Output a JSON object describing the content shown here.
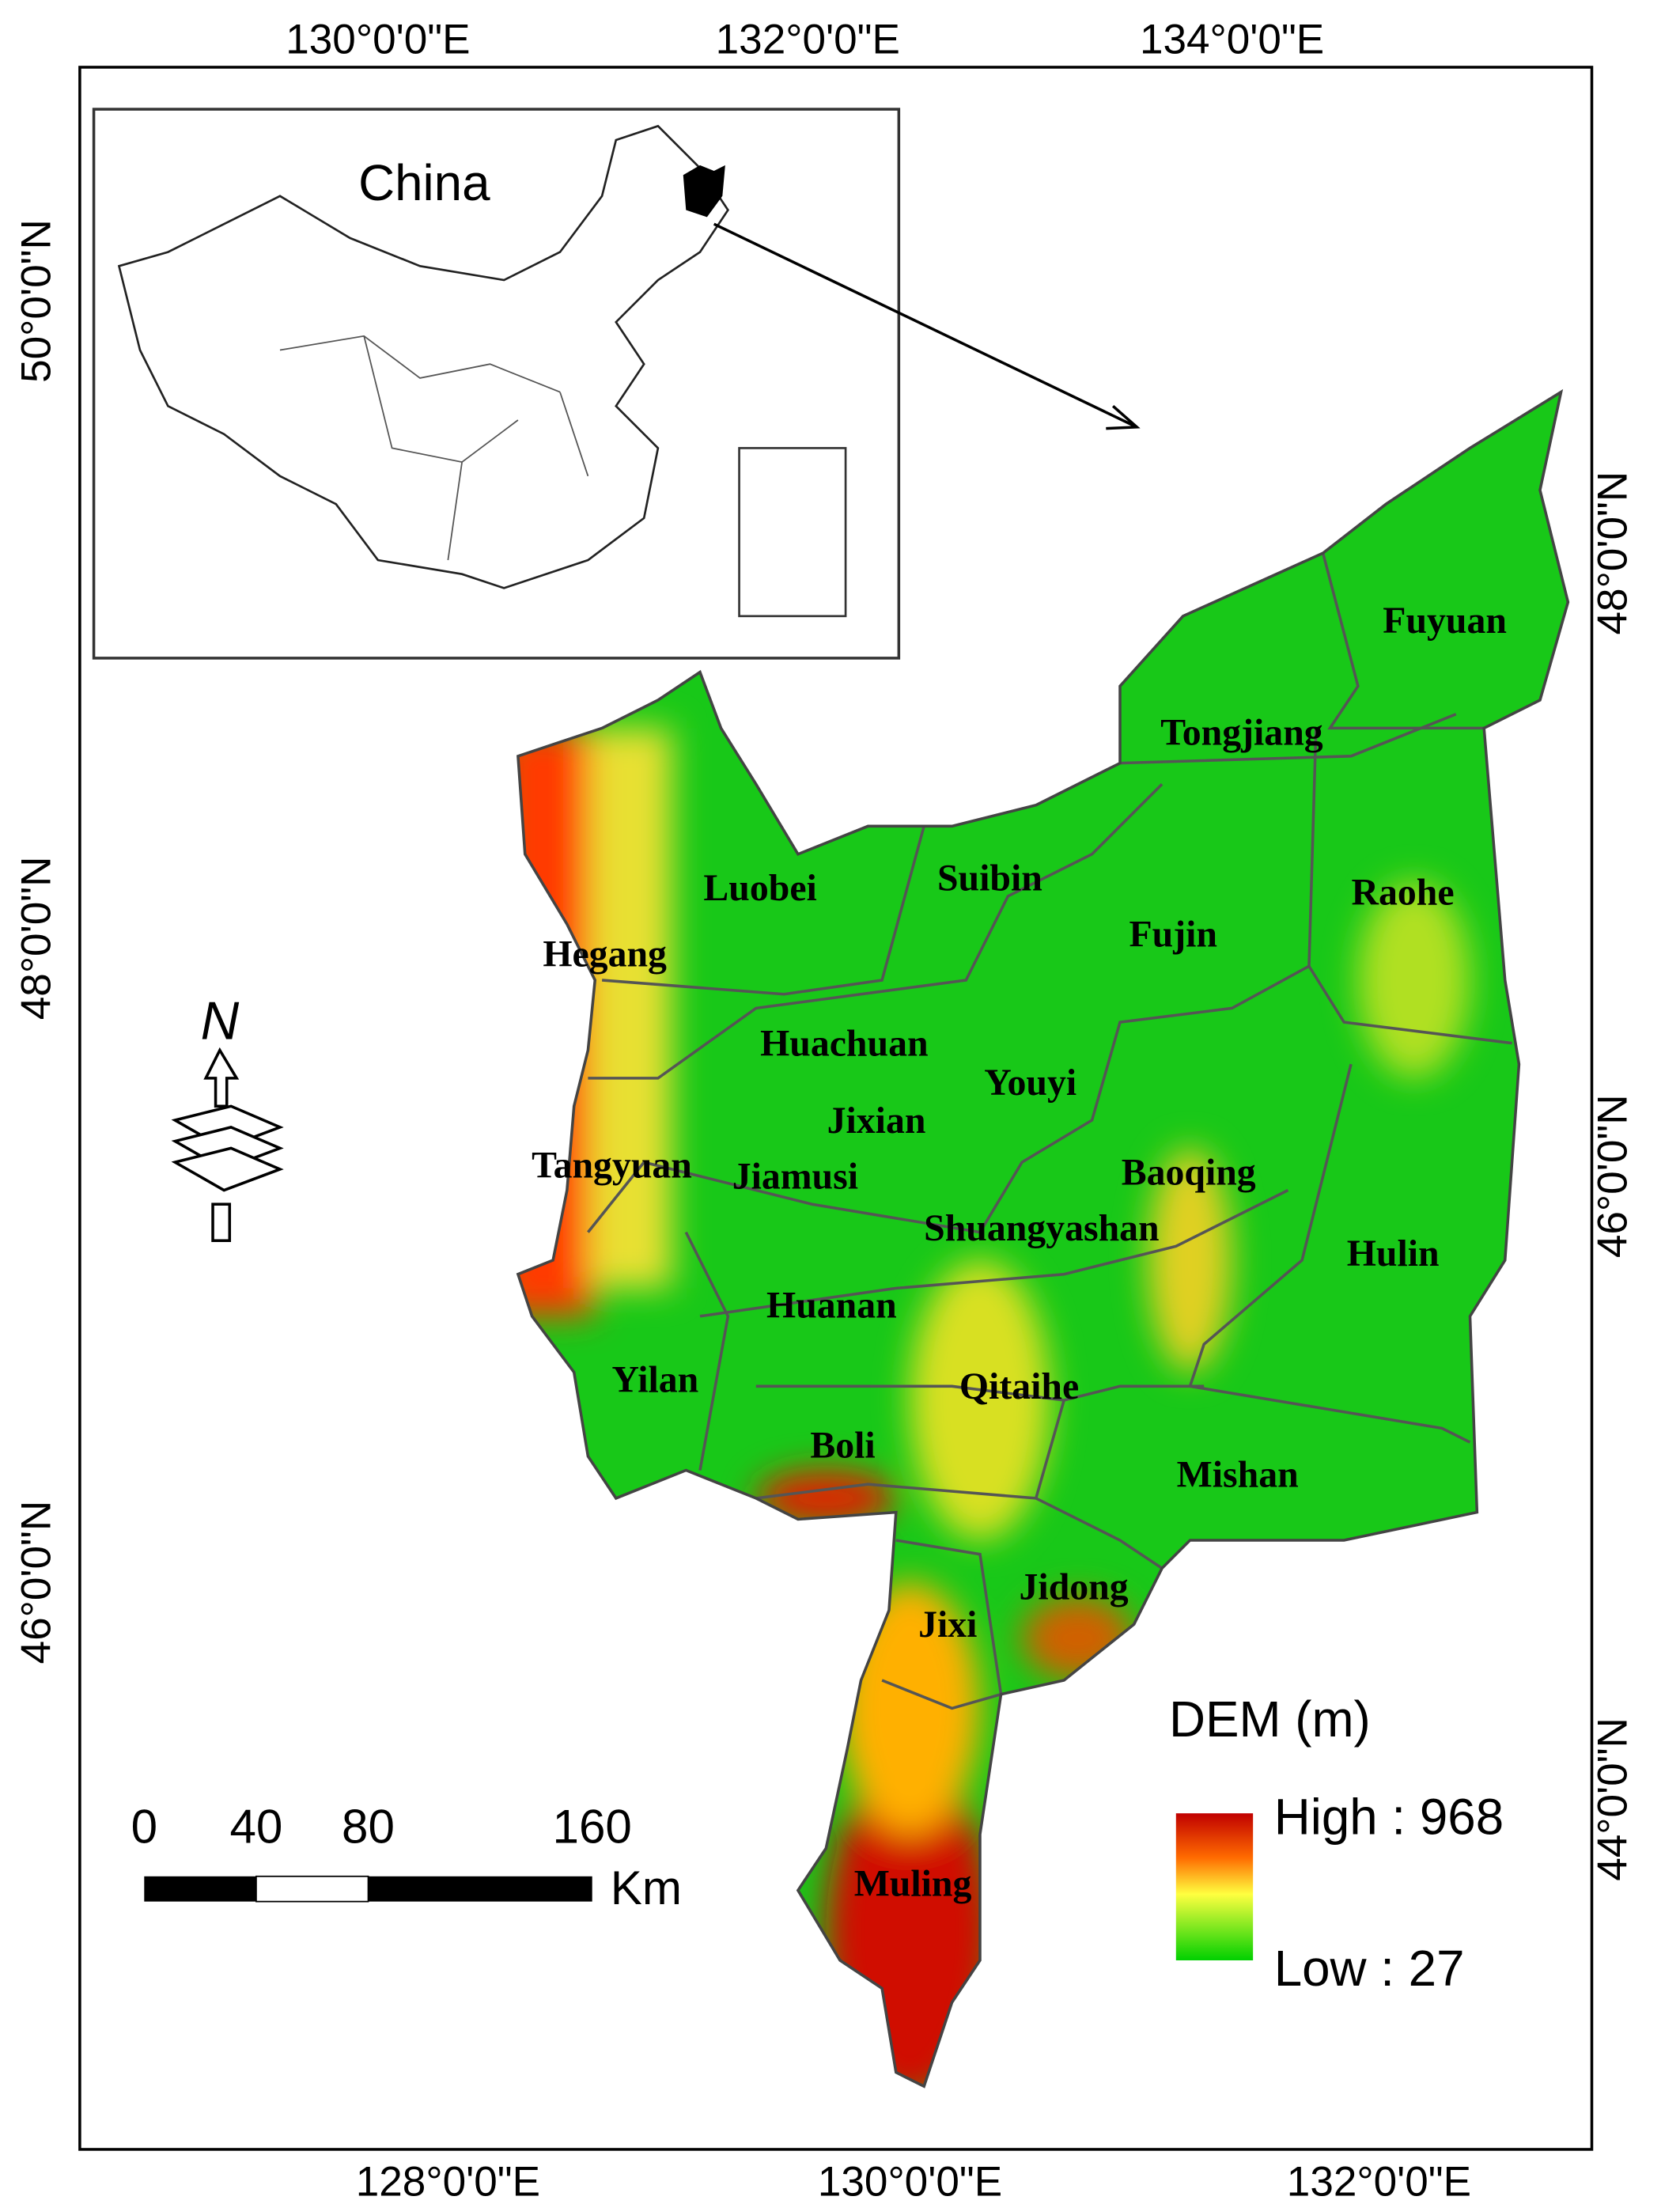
{
  "axes": {
    "top": [
      "130°0'0\"E",
      "132°0'0\"E",
      "134°0'0\"E"
    ],
    "bottom": [
      "128°0'0\"E",
      "130°0'0\"E",
      "132°0'0\"E"
    ],
    "left": [
      "50°0'0\"N",
      "48°0'0\"N",
      "46°0'0\"N"
    ],
    "right": [
      "48°0'0\"N",
      "46°0'0\"N",
      "44°0'0\"N"
    ]
  },
  "inset": {
    "label": "China"
  },
  "counties": [
    "Fuyuan",
    "Tongjiang",
    "Raohe",
    "Fujin",
    "Suibin",
    "Luobei",
    "Hegang",
    "Huachuan",
    "Youyi",
    "Jixian",
    "Baoqing",
    "Tangyuan",
    "Jiamusi",
    "Shuangyashan",
    "Hulin",
    "Huanan",
    "Yilan",
    "Qitaihe",
    "Boli",
    "Mishan",
    "Jidong",
    "Jixi",
    "Muling"
  ],
  "north": "N",
  "scale_bar": {
    "ticks": [
      "0",
      "40",
      "80",
      "160"
    ],
    "unit": "Km"
  },
  "legend": {
    "title": "DEM (m)",
    "high": "High : 968",
    "low": "Low : 27"
  }
}
